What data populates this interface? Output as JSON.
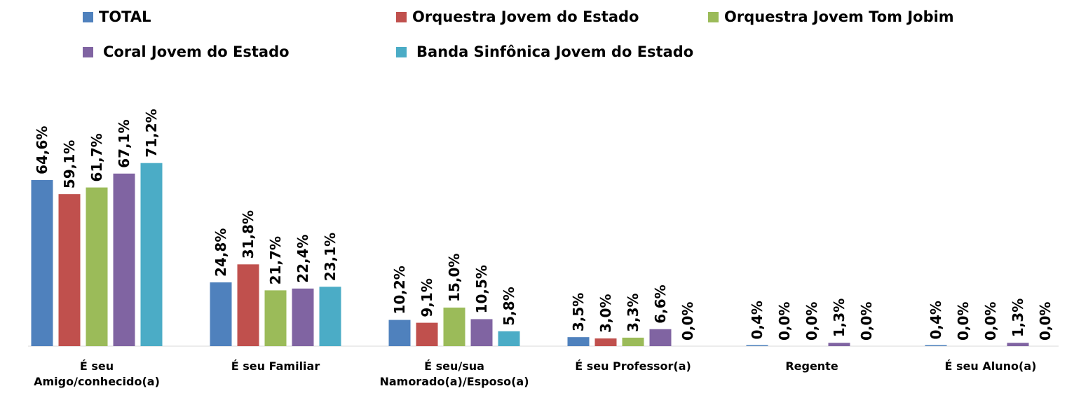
{
  "chart_data": {
    "type": "bar",
    "categories": [
      "É seu Amigo/conhecido(a)",
      "É seu Familiar",
      "É seu/sua Namorado(a)/Esposo(a)",
      "É seu Professor(a)",
      "Regente",
      "É seu Aluno(a)"
    ],
    "series": [
      {
        "name": "TOTAL",
        "color": "#4f81bd",
        "values": [
          64.6,
          24.8,
          10.2,
          3.5,
          0.4,
          0.4
        ],
        "value_labels": [
          "64,6%",
          "24,8%",
          "10,2%",
          "3,5%",
          "0,4%",
          "0,4%"
        ]
      },
      {
        "name": "Orquestra Jovem do Estado",
        "color": "#c0504d",
        "values": [
          59.1,
          31.8,
          9.1,
          3.0,
          0.0,
          0.0
        ],
        "value_labels": [
          "59,1%",
          "31,8%",
          "9,1%",
          "3,0%",
          "0,0%",
          "0,0%"
        ]
      },
      {
        "name": "Orquestra Jovem Tom Jobim",
        "color": "#9bbb59",
        "values": [
          61.7,
          21.7,
          15.0,
          3.3,
          0.0,
          0.0
        ],
        "value_labels": [
          "61,7%",
          "21,7%",
          "15,0%",
          "3,3%",
          "0,0%",
          "0,0%"
        ]
      },
      {
        "name": "Coral Jovem do Estado",
        "color": "#8064a2",
        "values": [
          67.1,
          22.4,
          10.5,
          6.6,
          1.3,
          1.3
        ],
        "value_labels": [
          "67,1%",
          "22,4%",
          "10,5%",
          "6,6%",
          "1,3%",
          "1,3%"
        ]
      },
      {
        "name": "Banda Sinfônica Jovem do Estado",
        "color": "#4bacc6",
        "values": [
          71.2,
          23.1,
          5.8,
          0.0,
          0.0,
          0.0
        ],
        "value_labels": [
          "71,2%",
          "23,1%",
          "5,8%",
          "0,0%",
          "0,0%",
          "0,0%"
        ]
      }
    ],
    "legend": "top"
  }
}
